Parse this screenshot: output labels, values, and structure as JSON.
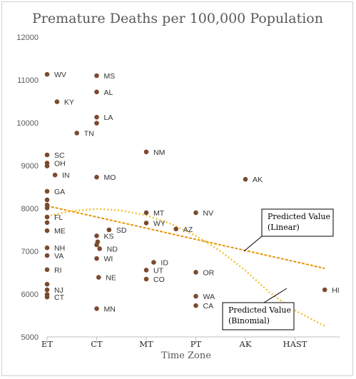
{
  "chart_data": {
    "type": "scatter",
    "title": "Premature Deaths per 100,000 Population",
    "xlabel": "Time Zone",
    "ylabel": "",
    "categories": [
      "ET",
      "CT",
      "MT",
      "PT",
      "AK",
      "HAST"
    ],
    "ylim": [
      5000,
      12000
    ],
    "yticks": [
      5000,
      6000,
      7000,
      8000,
      9000,
      10000,
      11000,
      12000
    ],
    "yticks_label": [
      "5000",
      "6000",
      "7000",
      "8000",
      "9000",
      "10000",
      "11000",
      "12000"
    ],
    "grid": false,
    "marker_color": "#7b4a2e",
    "points": [
      {
        "label": "WV",
        "x": 0,
        "y": 11130
      },
      {
        "label": "KY",
        "x": 0.2,
        "y": 10490
      },
      {
        "label": "TN",
        "x": 0.6,
        "y": 9760
      },
      {
        "label": "SC",
        "x": 0,
        "y": 9250
      },
      {
        "label": "OH",
        "x": 0,
        "y": 9060
      },
      {
        "label": "",
        "x": 0,
        "y": 8990
      },
      {
        "label": "IN",
        "x": 0.16,
        "y": 8780
      },
      {
        "label": "GA",
        "x": 0,
        "y": 8400
      },
      {
        "label": "",
        "x": 0,
        "y": 8200
      },
      {
        "label": "",
        "x": 0,
        "y": 8080
      },
      {
        "label": "",
        "x": 0,
        "y": 8010
      },
      {
        "label": "FL",
        "x": 0,
        "y": 7800
      },
      {
        "label": "",
        "x": 0,
        "y": 7670
      },
      {
        "label": "ME",
        "x": 0,
        "y": 7480
      },
      {
        "label": "NH",
        "x": 0,
        "y": 7080
      },
      {
        "label": "VA",
        "x": 0,
        "y": 6900
      },
      {
        "label": "RI",
        "x": 0,
        "y": 6570
      },
      {
        "label": "",
        "x": 0,
        "y": 6230
      },
      {
        "label": "NJ",
        "x": 0,
        "y": 6100
      },
      {
        "label": "",
        "x": 0,
        "y": 5990
      },
      {
        "label": "CT",
        "x": 0,
        "y": 5930
      },
      {
        "label": "MS",
        "x": 1,
        "y": 11100
      },
      {
        "label": "AL",
        "x": 1,
        "y": 10720
      },
      {
        "label": "LA",
        "x": 1,
        "y": 10130
      },
      {
        "label": "",
        "x": 1,
        "y": 9990
      },
      {
        "label": "MO",
        "x": 1,
        "y": 8730
      },
      {
        "label": "SD",
        "x": 1.25,
        "y": 7500
      },
      {
        "label": "KS",
        "x": 1,
        "y": 7360
      },
      {
        "label": "",
        "x": 1.02,
        "y": 7220
      },
      {
        "label": "",
        "x": 1,
        "y": 7150
      },
      {
        "label": "ND",
        "x": 1.06,
        "y": 7060
      },
      {
        "label": "WI",
        "x": 1,
        "y": 6830
      },
      {
        "label": "NE",
        "x": 1.04,
        "y": 6390
      },
      {
        "label": "MN",
        "x": 1,
        "y": 5660
      },
      {
        "label": "NM",
        "x": 2,
        "y": 9320
      },
      {
        "label": "MT",
        "x": 2,
        "y": 7900
      },
      {
        "label": "WY",
        "x": 2,
        "y": 7660
      },
      {
        "label": "ID",
        "x": 2.15,
        "y": 6740
      },
      {
        "label": "UT",
        "x": 2,
        "y": 6560
      },
      {
        "label": "CO",
        "x": 2,
        "y": 6350
      },
      {
        "label": "AZ",
        "x": 2.6,
        "y": 7520
      },
      {
        "label": "NV",
        "x": 3,
        "y": 7900
      },
      {
        "label": "OR",
        "x": 3,
        "y": 6510
      },
      {
        "label": "WA",
        "x": 3,
        "y": 5950
      },
      {
        "label": "CA",
        "x": 3,
        "y": 5730
      },
      {
        "label": "AK",
        "x": 4,
        "y": 8680
      },
      {
        "label": "HI",
        "x": 5.6,
        "y": 6100
      }
    ],
    "trendlines": [
      {
        "name": "Predicted Value (Linear)",
        "type": "linear",
        "color": "#e6950e",
        "x": [
          0,
          5.6
        ],
        "y": [
          8060,
          6600
        ]
      },
      {
        "name": "Predicted Value (Binomial)",
        "type": "quadratic",
        "color": "#f2c12e",
        "x": [
          0,
          0.5,
          1,
          1.5,
          2,
          2.5,
          3,
          3.5,
          4,
          4.5,
          5,
          5.6
        ],
        "y": [
          7820,
          7940,
          7990,
          7950,
          7840,
          7640,
          7360,
          7000,
          6550,
          6020,
          5620,
          5250
        ]
      }
    ],
    "callouts": [
      {
        "lines": [
          "Predicted Value",
          "(Linear)"
        ],
        "points_to": 0
      },
      {
        "lines": [
          "Predicted Value",
          "(Binomial)"
        ],
        "points_to": 1
      }
    ]
  }
}
